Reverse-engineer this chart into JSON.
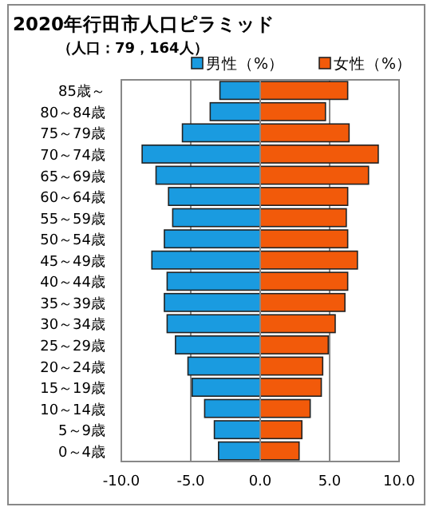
{
  "chart_data": {
    "type": "bar",
    "orientation": "horizontal",
    "title": "2020年行田市人口ピラミッド",
    "subtitle": "（人口：79，164人）",
    "categories": [
      "85歳～",
      "80～84歳",
      "75～79歳",
      "70～74歳",
      "65～69歳",
      "60～64歳",
      "55～59歳",
      "50～54歳",
      "45～49歳",
      "40～44歳",
      "35～39歳",
      "30～34歳",
      "25～29歳",
      "20～24歳",
      "15～19歳",
      "10～14歳",
      "5～9歳",
      "0～4歳"
    ],
    "series": [
      {
        "name": "男性（%）",
        "color": "#1a9be0",
        "values": [
          -2.9,
          -3.6,
          -5.6,
          -8.5,
          -7.5,
          -6.6,
          -6.3,
          -6.9,
          -7.8,
          -6.7,
          -6.9,
          -6.7,
          -6.1,
          -5.2,
          -4.9,
          -4.0,
          -3.3,
          -3.0
        ]
      },
      {
        "name": "女性（%）",
        "color": "#f25a0a",
        "values": [
          6.3,
          4.7,
          6.4,
          8.5,
          7.8,
          6.3,
          6.2,
          6.3,
          7.0,
          6.3,
          6.1,
          5.4,
          4.9,
          4.5,
          4.4,
          3.6,
          3.0,
          2.8
        ]
      }
    ],
    "xlim": [
      -10,
      10
    ],
    "xticks": [
      {
        "value": -10,
        "label": "-10.0"
      },
      {
        "value": -5,
        "label": "-5.0"
      },
      {
        "value": 0,
        "label": "0.0"
      },
      {
        "value": 5,
        "label": "5.0"
      },
      {
        "value": 10,
        "label": "10.0"
      }
    ],
    "grid": "x",
    "legend": "top",
    "stacked": true
  }
}
